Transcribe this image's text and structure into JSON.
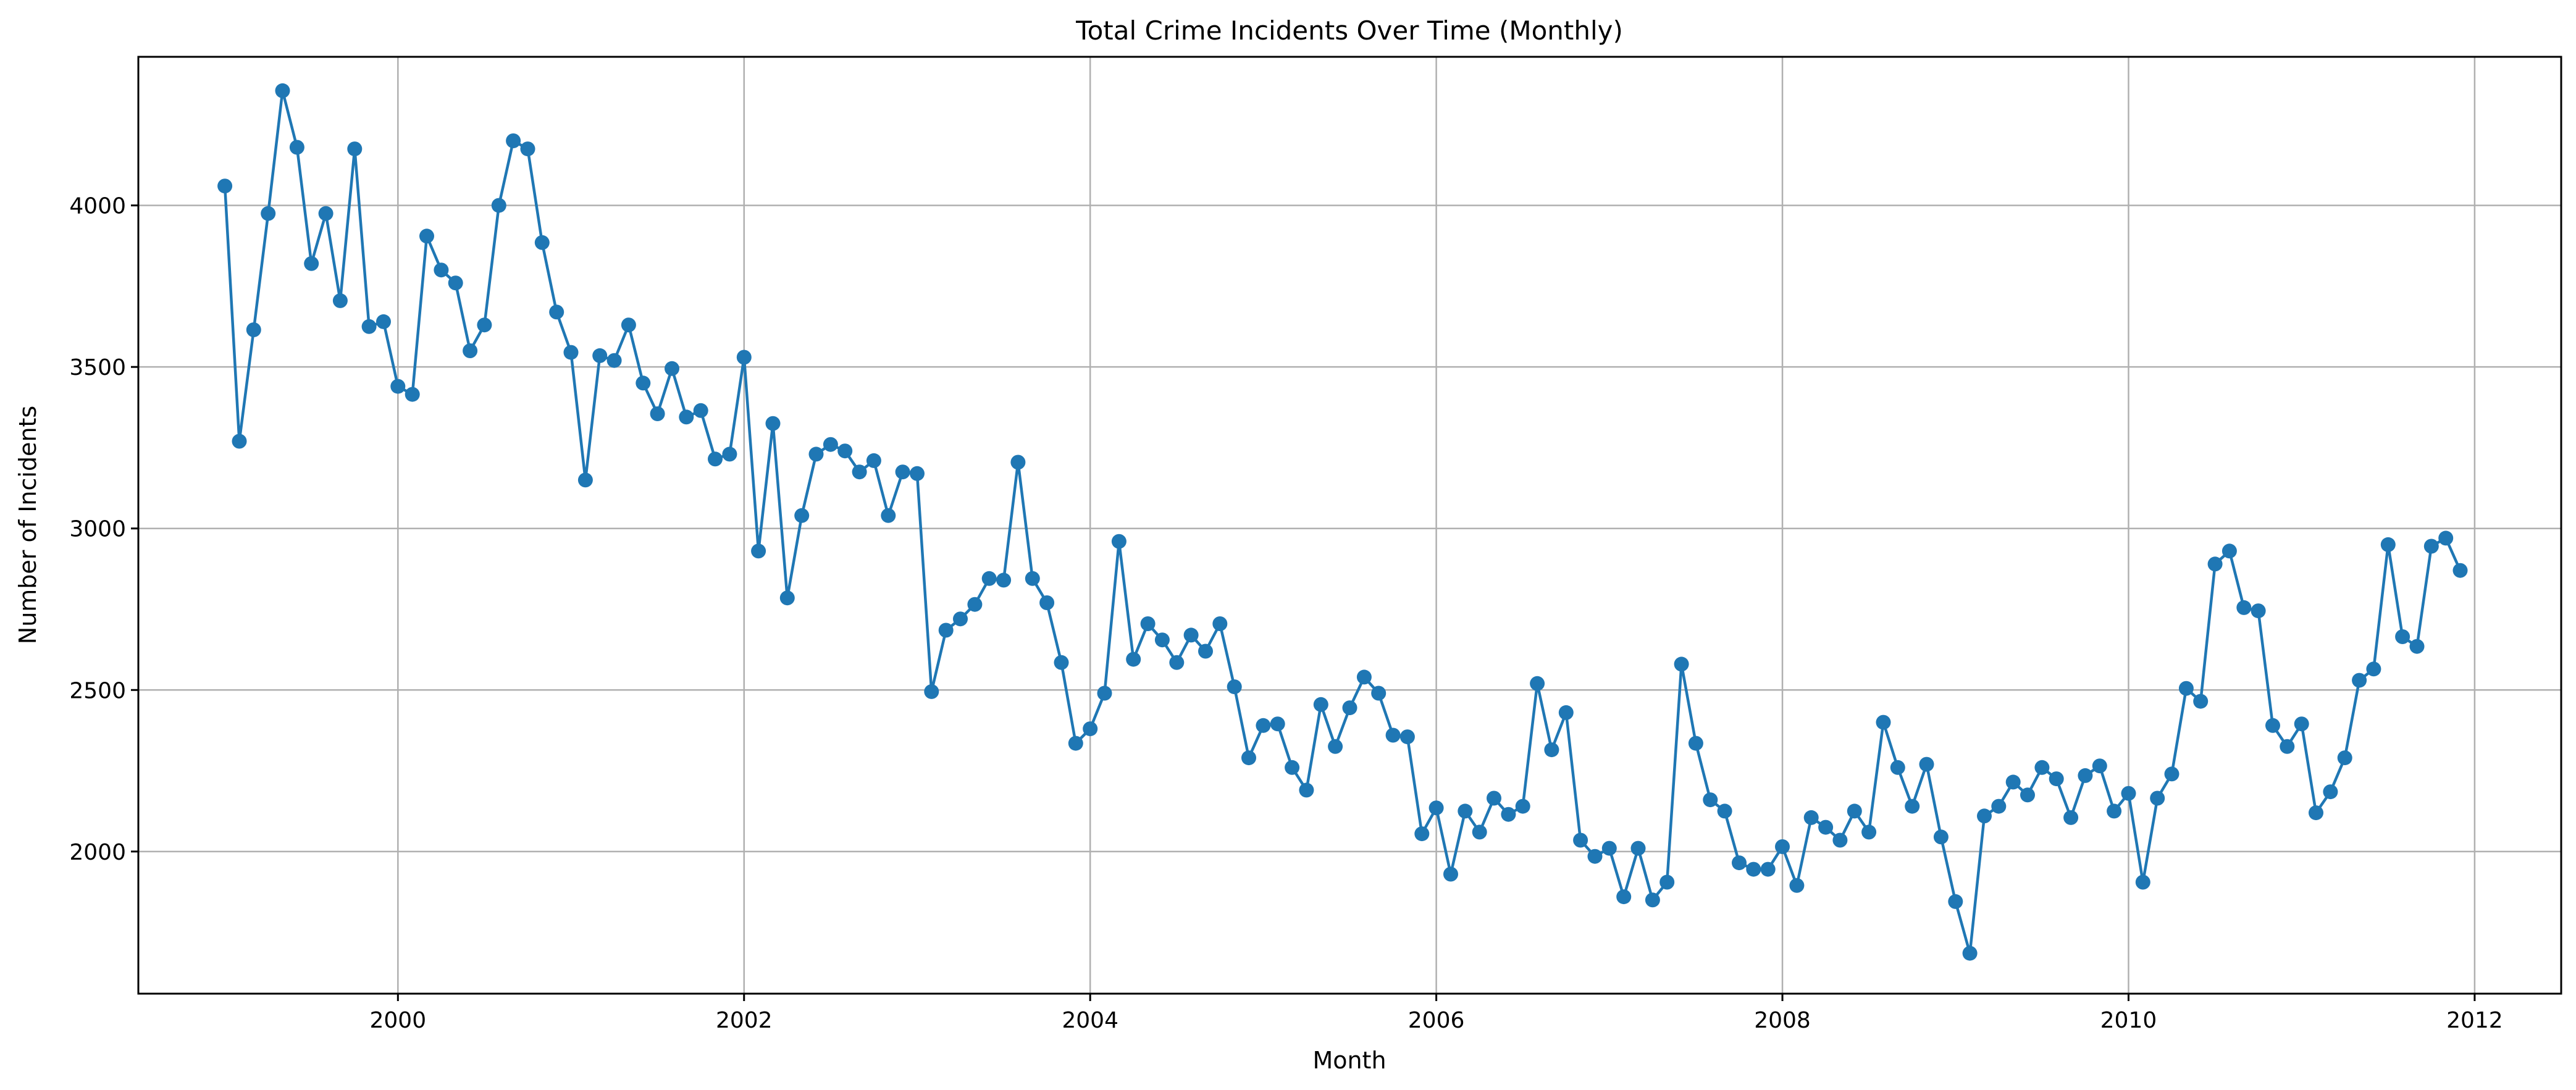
{
  "chart_data": {
    "type": "line",
    "title": "Total Crime Incidents Over Time (Monthly)",
    "xlabel": "Month",
    "ylabel": "Number of Incidents",
    "x_start": "1999-01",
    "x_ticks": [
      "2000",
      "2002",
      "2004",
      "2006",
      "2008",
      "2010",
      "2012"
    ],
    "y_ticks": [
      2000,
      2500,
      3000,
      3500,
      4000
    ],
    "xlim": [
      "1998-07",
      "2012-07"
    ],
    "ylim": [
      1560,
      4460
    ],
    "grid": true,
    "marker": "circle",
    "color": "#1f77b4",
    "series": [
      {
        "values": [
          4060,
          3270,
          3615,
          3975,
          4355,
          4180,
          3820,
          3975,
          3705,
          4175,
          3625,
          3640,
          3440,
          3415,
          3905,
          3800,
          3760,
          3550,
          3630,
          4000,
          4200,
          4175,
          3885,
          3670,
          3545,
          3150,
          3535,
          3520,
          3630,
          3450,
          3355,
          3495,
          3345,
          3365,
          3215,
          3230,
          3530,
          2930,
          3325,
          2785,
          3040,
          3230,
          3260,
          3240,
          3175,
          3210,
          3040,
          3175,
          3170,
          2495,
          2685,
          2720,
          2765,
          2845,
          2840,
          3205,
          2845,
          2770,
          2585,
          2335,
          2380,
          2490,
          2960,
          2595,
          2705,
          2655,
          2585,
          2670,
          2620,
          2705,
          2510,
          2290,
          2390,
          2395,
          2260,
          2190,
          2455,
          2325,
          2445,
          2540,
          2490,
          2360,
          2355,
          2055,
          2135,
          1930,
          2125,
          2060,
          2165,
          2115,
          2140,
          2520,
          2315,
          2430,
          2035,
          1985,
          2010,
          1860,
          2010,
          1850,
          1905,
          2580,
          2335,
          2160,
          2125,
          1965,
          1945,
          1945,
          2015,
          1895,
          2105,
          2075,
          2035,
          2125,
          2060,
          2400,
          2260,
          2140,
          2270,
          2045,
          1845,
          1685,
          2110,
          2140,
          2215,
          2175,
          2260,
          2225,
          2105,
          2235,
          2265,
          2125,
          2180,
          1905,
          2165,
          2240,
          2505,
          2465,
          2890,
          2930,
          2755,
          2745,
          2390,
          2325,
          2395,
          2120,
          2185,
          2290,
          2530,
          2565,
          2950,
          2665,
          2635,
          2945,
          2970,
          2870
        ]
      }
    ]
  }
}
